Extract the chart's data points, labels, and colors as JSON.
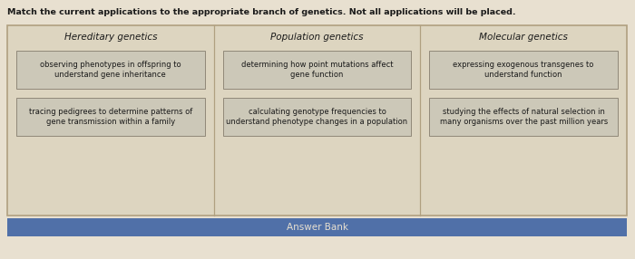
{
  "title": "Match the current applications to the appropriate branch of genetics. Not all applications will be placed.",
  "page_bg": "#e8e0d0",
  "outer_bg": "#ddd5c0",
  "outer_border_color": "#b0a080",
  "columns": [
    {
      "header": "Hereditary genetics",
      "cards": [
        "observing phenotypes in offspring to\nunderstand gene inheritance",
        "tracing pedigrees to determine patterns of\ngene transmission within a family"
      ]
    },
    {
      "header": "Population genetics",
      "cards": [
        "determining how point mutations affect\ngene function",
        "calculating genotype frequencies to\nunderstand phenotype changes in a population"
      ]
    },
    {
      "header": "Molecular genetics",
      "cards": [
        "expressing exogenous transgenes to\nunderstand function",
        "studying the effects of natural selection in\nmany organisms over the past million years"
      ]
    }
  ],
  "answer_bank_label": "Answer Bank",
  "answer_bank_bg": "#5070a8",
  "answer_bank_text_color": "#e8e0d0",
  "card_bg": "#ccc8b8",
  "card_border": "#908878",
  "header_color": "#1a1a1a",
  "card_text_color": "#1a1a1a",
  "title_color": "#1a1a1a"
}
